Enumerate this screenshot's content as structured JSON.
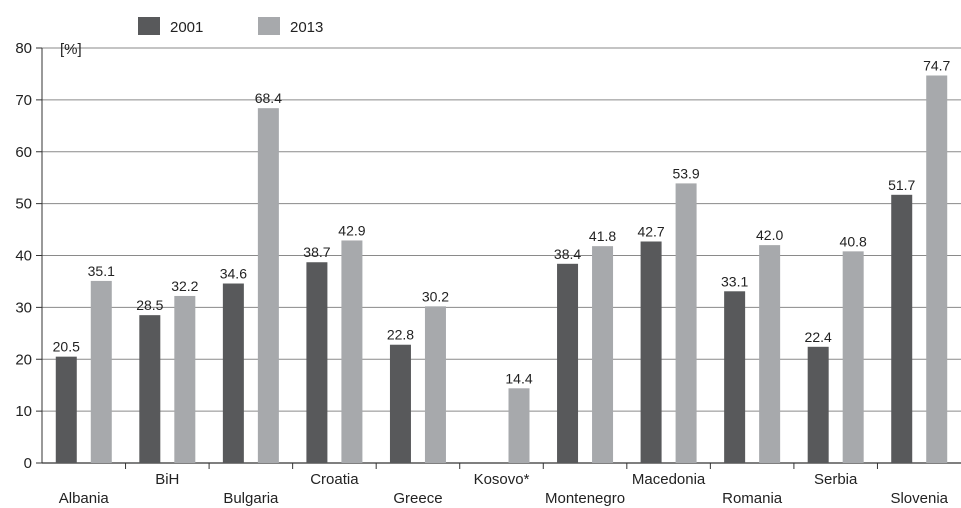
{
  "chart_data": {
    "type": "bar",
    "unit_label": "[%]",
    "categories": [
      "Albania",
      "BiH",
      "Bulgaria",
      "Croatia",
      "Greece",
      "Kosovo*",
      "Montenegro",
      "Macedonia",
      "Romania",
      "Serbia",
      "Slovenia"
    ],
    "series": [
      {
        "name": "2001",
        "color": "#58595b",
        "values": [
          20.5,
          28.5,
          34.6,
          38.7,
          22.8,
          null,
          38.4,
          42.7,
          33.1,
          22.4,
          51.7
        ]
      },
      {
        "name": "2013",
        "color": "#a7a9ac",
        "values": [
          35.1,
          32.2,
          68.4,
          42.9,
          30.2,
          14.4,
          41.8,
          53.9,
          42.0,
          40.8,
          74.7
        ]
      }
    ],
    "value_labels": [
      [
        "20.5",
        "28.5",
        "34.6",
        "38.7",
        "22.8",
        null,
        "38.4",
        "42.7",
        "33.1",
        "22.4",
        "51.7"
      ],
      [
        "35.1",
        "32.2",
        "68.4",
        "42.9",
        "30.2",
        "14.4",
        "41.8",
        "53.9",
        "42.0",
        "40.8",
        "74.7"
      ]
    ],
    "ylim": [
      0,
      80
    ],
    "yticks": [
      0,
      10,
      20,
      30,
      40,
      50,
      60,
      70,
      80
    ],
    "grid": true,
    "legend_position": "top-left"
  }
}
